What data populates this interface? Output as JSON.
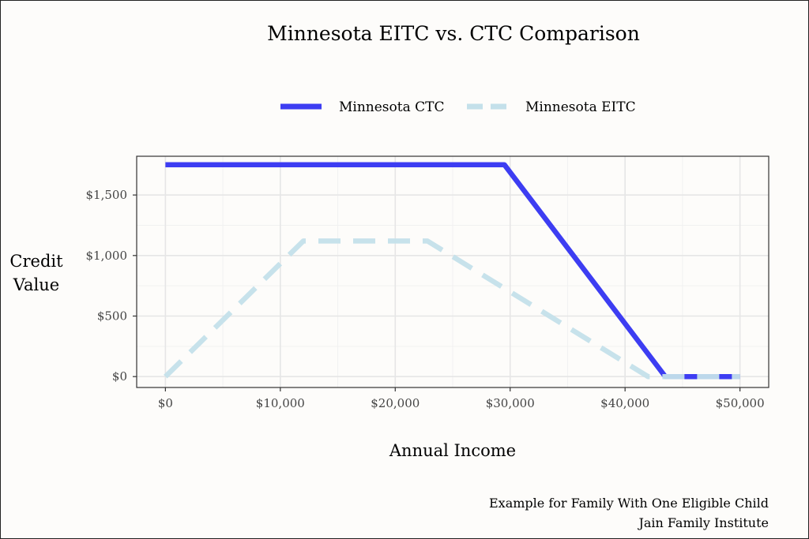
{
  "chart_data": {
    "type": "line",
    "title": "Minnesota EITC vs. CTC Comparison",
    "xlabel": "Annual Income",
    "ylabel": [
      "Credit",
      "Value"
    ],
    "xlim": [
      -2500,
      52500
    ],
    "ylim": [
      -90,
      1820
    ],
    "x_ticks": [
      0,
      10000,
      20000,
      30000,
      40000,
      50000
    ],
    "x_tick_labels": [
      "$0",
      "$10,000",
      "$20,000",
      "$30,000",
      "$40,000",
      "$50,000"
    ],
    "y_ticks": [
      0,
      500,
      1000,
      1500
    ],
    "y_tick_labels": [
      "$0",
      "$500",
      "$1,000",
      "$1,500"
    ],
    "grid": true,
    "legend_position": "top",
    "series": [
      {
        "name": "Minnesota CTC",
        "color": "#3d3df2",
        "dash": "solid",
        "points": [
          [
            0,
            1750
          ],
          [
            29500,
            1750
          ],
          [
            43500,
            0
          ],
          [
            50000,
            0
          ]
        ]
      },
      {
        "name": "Minnesota EITC",
        "color": "#c4e0ea",
        "dash": "dashed",
        "points": [
          [
            0,
            0
          ],
          [
            12000,
            1120
          ],
          [
            22800,
            1120
          ],
          [
            42000,
            0
          ],
          [
            50000,
            0
          ]
        ]
      }
    ],
    "caption": [
      "Example for Family With One Eligible Child",
      "Jain Family Institute"
    ]
  }
}
